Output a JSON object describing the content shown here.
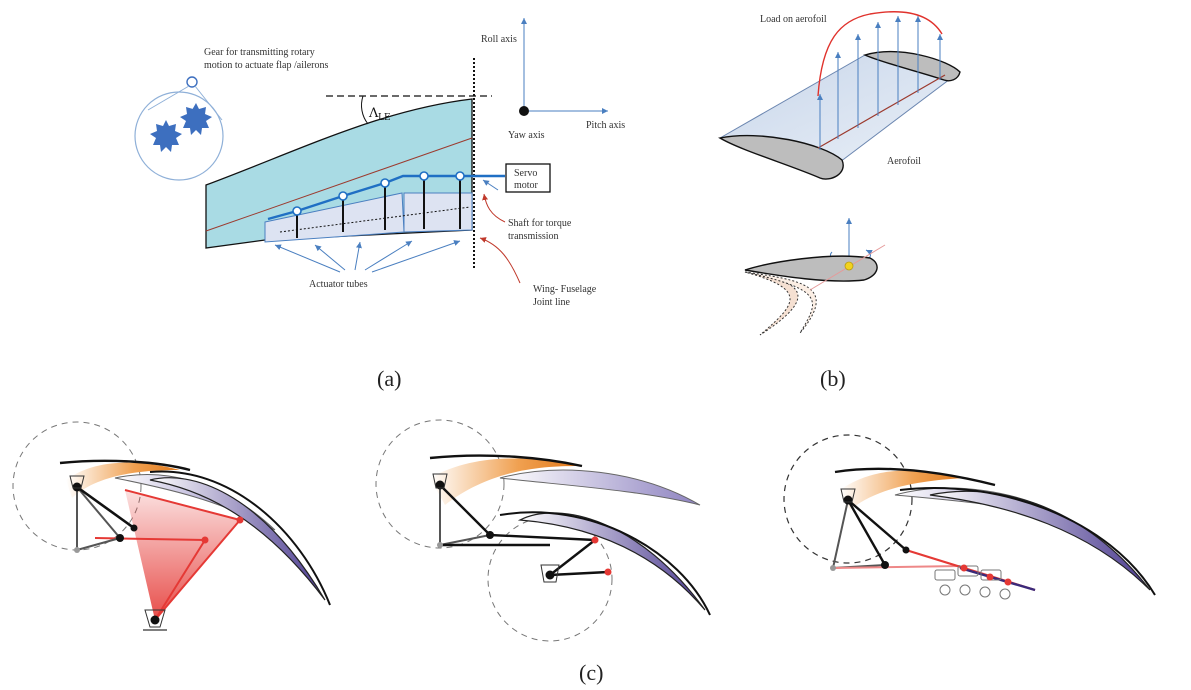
{
  "panel_a": {
    "gear_label_1": "Gear for transmitting rotary",
    "gear_label_2": "motion to actuate flap /ailerons",
    "sweep_symbol": "Λ",
    "sweep_subscript": "LE",
    "roll_axis": "Roll  axis",
    "yaw_axis": "Yaw  axis",
    "pitch_axis": "Pitch axis",
    "servo_line1": "Servo",
    "servo_line2": "motor",
    "shaft_line1": "Shaft for torque",
    "shaft_line2": "transmission",
    "joint_line1": "Wing- Fuselage",
    "joint_line2": "Joint line",
    "actuator_label": "Actuator tubes",
    "caption": "(a)"
  },
  "panel_b": {
    "load_label": "Load on aerofoil",
    "aerofoil_label": "Aerofoil",
    "caption": "(b)"
  },
  "panel_c": {
    "caption": "(c)"
  },
  "colors": {
    "wing_fill": "#a9dbe4",
    "flap_fill": "#dde3f2",
    "shaft_blue": "#1f6fc4",
    "axis_blue": "#4a7fc0",
    "load_red": "#e0322c",
    "gear_blue": "#3d6fbf",
    "slat_orange": "#e8892b",
    "linkage_red": "#e53935",
    "flap_purple": "#3b2a7a"
  }
}
